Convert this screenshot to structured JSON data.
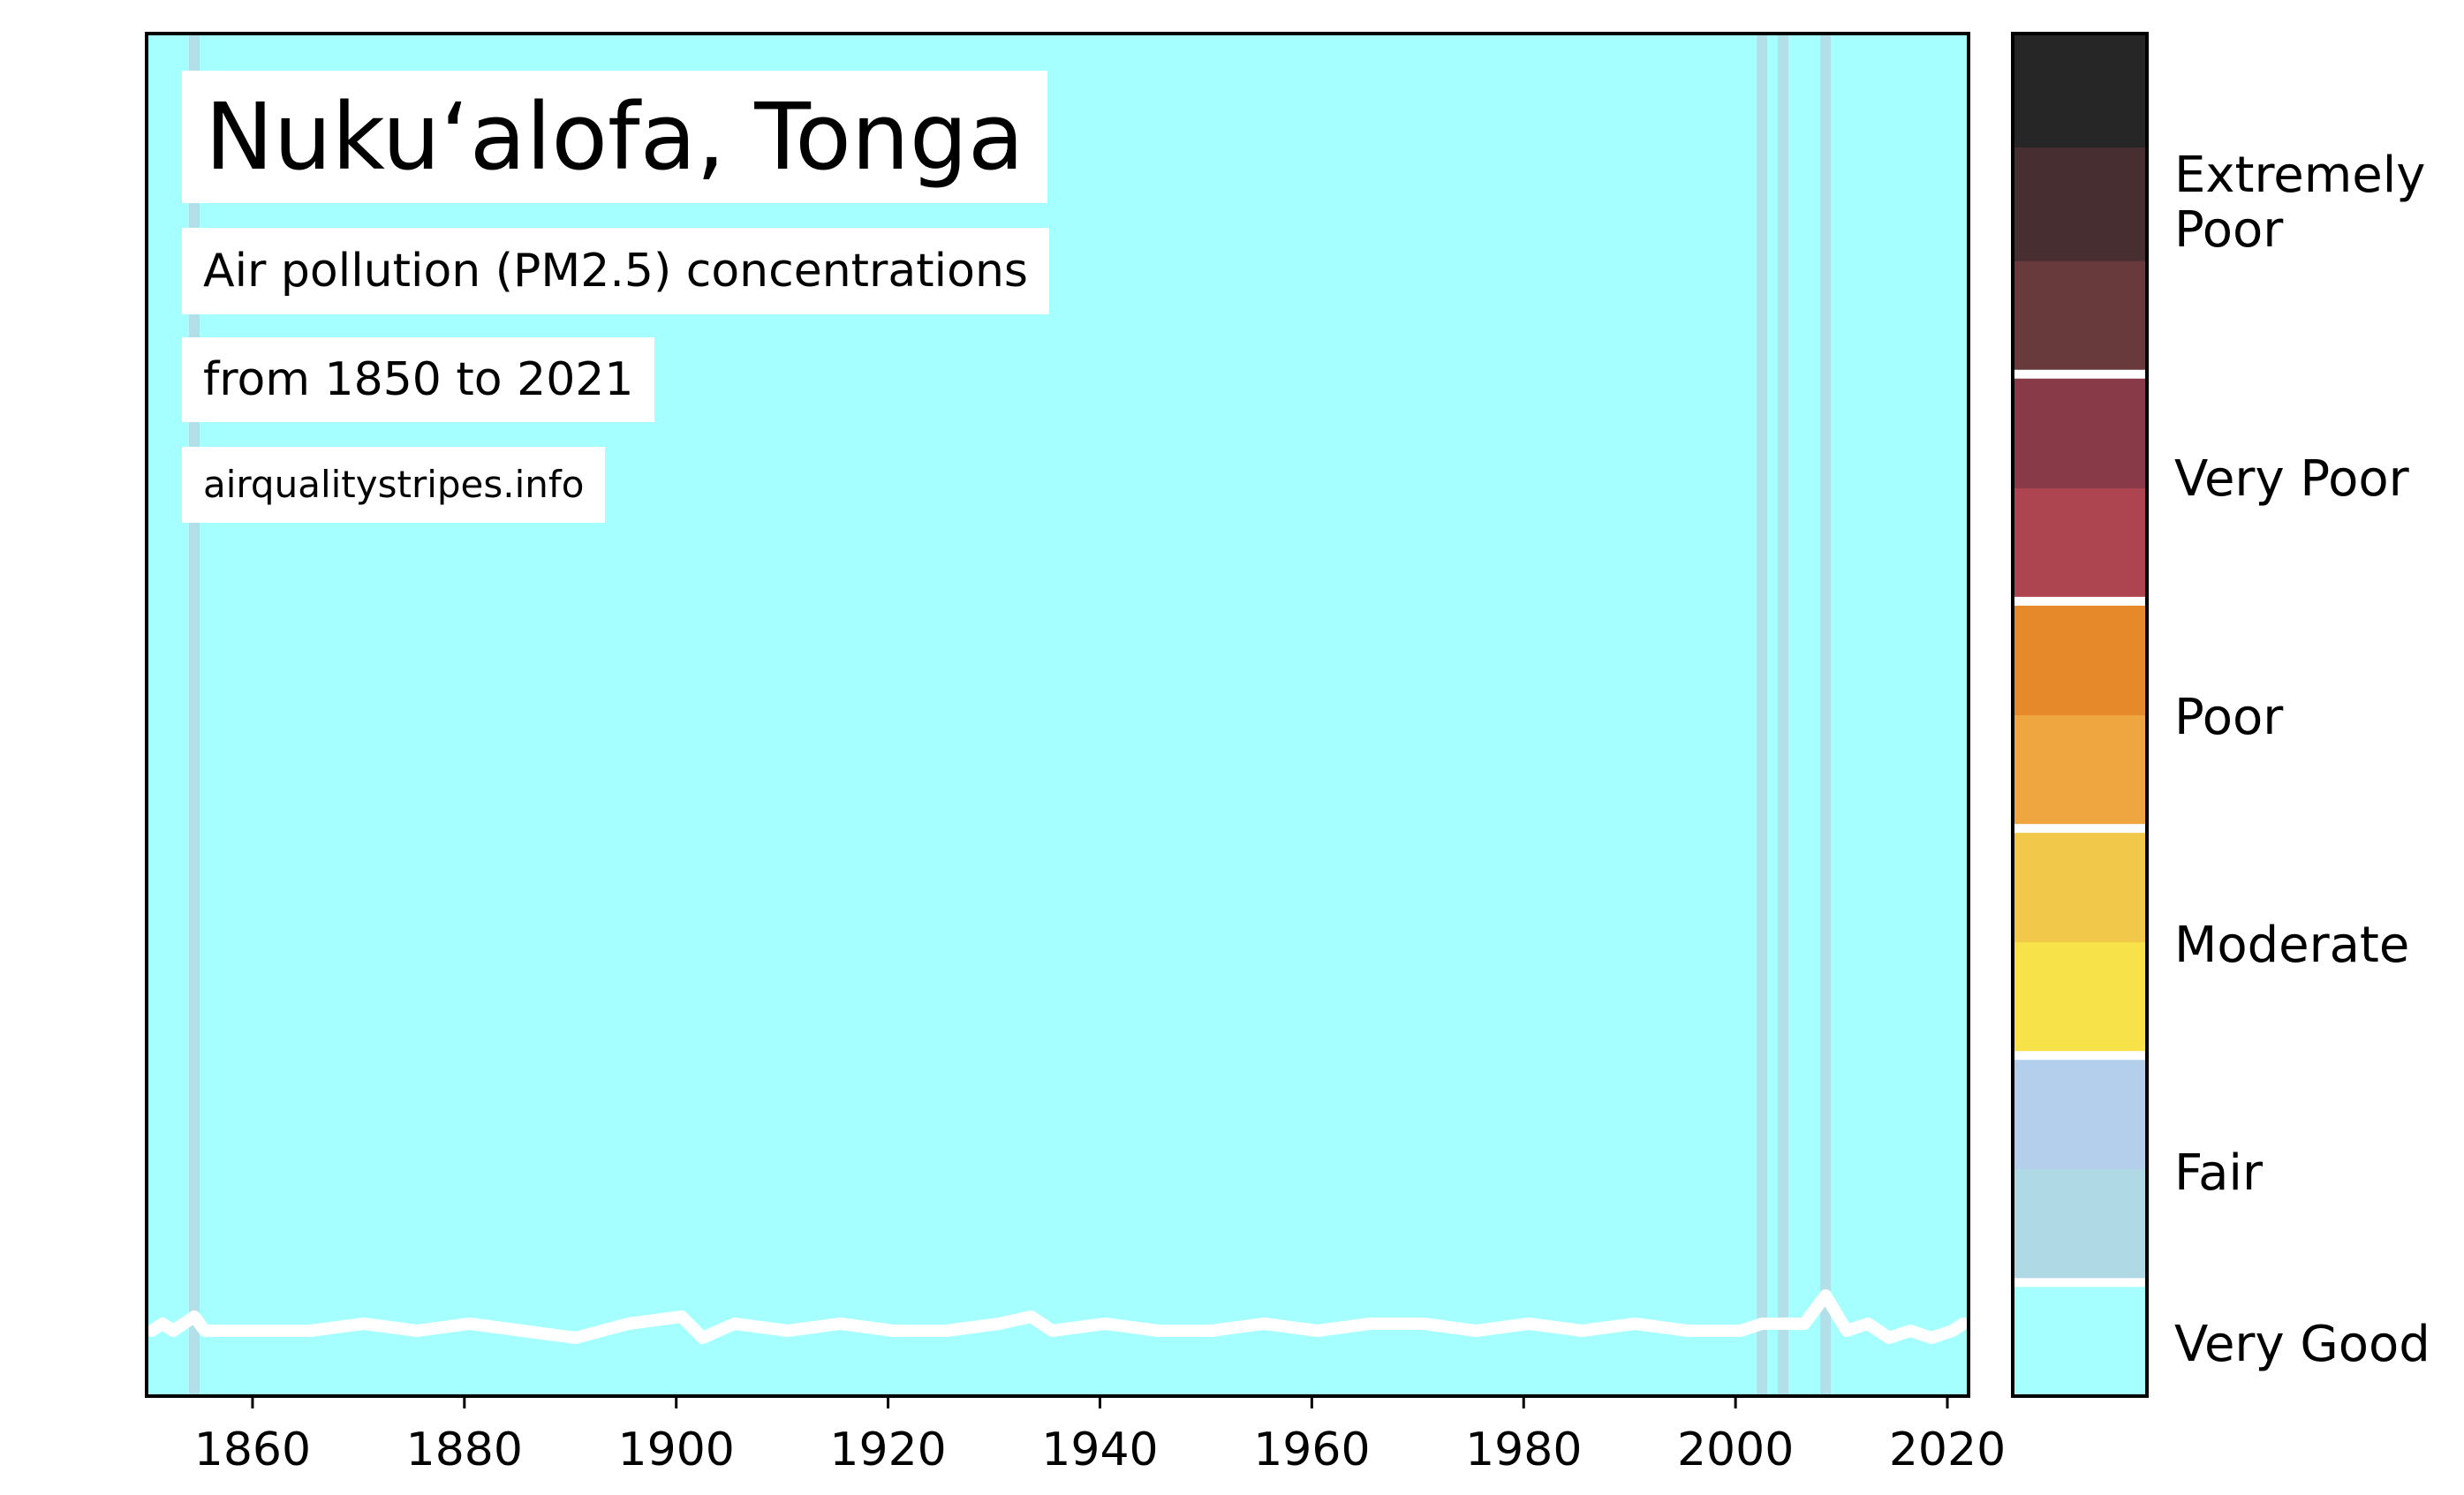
{
  "title": "Nuku‘alofa, Tonga",
  "subtitle": "Air pollution (PM2.5) concentrations",
  "date_range": "from 1850 to 2021",
  "source": "airqualitystripes.info",
  "colorbar": {
    "bands": [
      {
        "color": "#a6ffff",
        "label": "Very Good"
      },
      {
        "color": "#b0d9e6",
        "label": "Fair"
      },
      {
        "color": "#b3cfec",
        "label": ""
      },
      {
        "color": "#f8e24a",
        "label": "Moderate"
      },
      {
        "color": "#f2c84b",
        "label": ""
      },
      {
        "color": "#efa640",
        "label": "Poor"
      },
      {
        "color": "#e6892a",
        "label": ""
      },
      {
        "color": "#ac4550",
        "label": "Very Poor"
      },
      {
        "color": "#883a48",
        "label": ""
      },
      {
        "color": "#683a3c",
        "label": "Extremely Poor"
      },
      {
        "color": "#472f31",
        "label": ""
      },
      {
        "color": "#262626",
        "label": ""
      }
    ],
    "labels": {
      "very_good": "Very Good",
      "fair": "Fair",
      "moderate": "Moderate",
      "poor": "Poor",
      "very_poor": "Very Poor",
      "extremely_poor_line1": "Extremely",
      "extremely_poor_line2": "Poor"
    }
  },
  "colors": {
    "very_good": "#a6ffff",
    "fair_stripe": "#b3e0e8",
    "line": "#ffffff"
  },
  "chart_data": {
    "type": "heatmap",
    "title": "Nuku‘alofa, Tonga",
    "subtitle": "Air pollution (PM2.5) concentrations",
    "xlim": [
      1850,
      2022
    ],
    "xticks": [
      1860,
      1880,
      1900,
      1920,
      1940,
      1960,
      1980,
      2000,
      2020
    ],
    "xtick_labels": [
      "1860",
      "1880",
      "1900",
      "1920",
      "1940",
      "1960",
      "1980",
      "2000",
      "2020"
    ],
    "years": [
      1850,
      2021
    ],
    "default_category": "Very Good",
    "fair_years": [
      1854,
      2002,
      2004,
      2008
    ],
    "line": {
      "description_points": [
        [
          1850,
          0.37
        ],
        [
          1851,
          0.38
        ],
        [
          1852,
          0.37
        ],
        [
          1853,
          0.38
        ],
        [
          1854,
          0.39
        ],
        [
          1855,
          0.37
        ],
        [
          1860,
          0.37
        ],
        [
          1865,
          0.37
        ],
        [
          1870,
          0.38
        ],
        [
          1875,
          0.37
        ],
        [
          1880,
          0.38
        ],
        [
          1885,
          0.37
        ],
        [
          1890,
          0.36
        ],
        [
          1895,
          0.38
        ],
        [
          1900,
          0.39
        ],
        [
          1902,
          0.36
        ],
        [
          1905,
          0.38
        ],
        [
          1910,
          0.37
        ],
        [
          1915,
          0.38
        ],
        [
          1920,
          0.37
        ],
        [
          1925,
          0.37
        ],
        [
          1930,
          0.38
        ],
        [
          1933,
          0.39
        ],
        [
          1935,
          0.37
        ],
        [
          1940,
          0.38
        ],
        [
          1945,
          0.37
        ],
        [
          1950,
          0.37
        ],
        [
          1955,
          0.38
        ],
        [
          1960,
          0.37
        ],
        [
          1965,
          0.38
        ],
        [
          1970,
          0.38
        ],
        [
          1975,
          0.37
        ],
        [
          1980,
          0.38
        ],
        [
          1985,
          0.37
        ],
        [
          1990,
          0.38
        ],
        [
          1995,
          0.37
        ],
        [
          2000,
          0.37
        ],
        [
          2002,
          0.38
        ],
        [
          2004,
          0.38
        ],
        [
          2006,
          0.38
        ],
        [
          2008,
          0.42
        ],
        [
          2010,
          0.37
        ],
        [
          2012,
          0.38
        ],
        [
          2014,
          0.36
        ],
        [
          2016,
          0.37
        ],
        [
          2018,
          0.36
        ],
        [
          2020,
          0.37
        ],
        [
          2021,
          0.38
        ]
      ]
    }
  }
}
